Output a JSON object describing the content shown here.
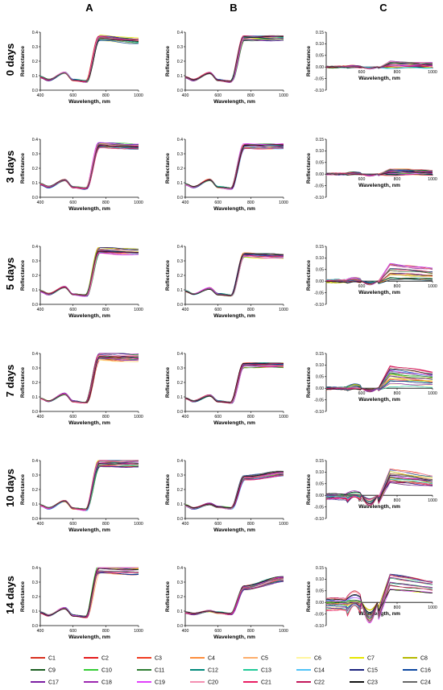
{
  "column_headers": [
    "A",
    "B",
    "C"
  ],
  "row_labels": [
    "0 days",
    "3 days",
    "5 days",
    "7 days",
    "10 days",
    "14 days"
  ],
  "axis_text": {
    "xlabel": "Wavelength, nm",
    "ylabel": "Reflectance"
  },
  "legend": {
    "names": [
      "C1",
      "C2",
      "C3",
      "C4",
      "C5",
      "C6",
      "C7",
      "C8",
      "C9",
      "C10",
      "C11",
      "C12",
      "C13",
      "C14",
      "C15",
      "C16",
      "C17",
      "C18",
      "C19",
      "C20",
      "C21",
      "C22",
      "C23",
      "C24"
    ],
    "colors": [
      "#d7301f",
      "#e41a1c",
      "#f03b20",
      "#fd8d3c",
      "#fdae6b",
      "#fff59d",
      "#e6e600",
      "#b5b800",
      "#1b5e20",
      "#33cc33",
      "#2e7d32",
      "#00897b",
      "#20c997",
      "#4fc3f7",
      "#1a237e",
      "#0d47a1",
      "#7b1fa2",
      "#9c27b0",
      "#e040fb",
      "#f48fb1",
      "#e91e63",
      "#c2185b",
      "#111111",
      "#666666"
    ]
  },
  "chart_data": [
    {
      "type": "line",
      "panel": "A",
      "row": "0 days",
      "x_range": [
        400,
        1000
      ],
      "y_range": [
        0,
        0.4
      ],
      "xticks": [
        400,
        600,
        800,
        1000
      ],
      "yticks": [
        0,
        0.1,
        0.2,
        0.3,
        0.4
      ],
      "xlabel": "Wavelength, nm",
      "ylabel": "Reflectance",
      "shape": "veg",
      "seed": 1,
      "key_points": {
        "x": [
          400,
          450,
          550,
          600,
          680,
          760,
          1000
        ],
        "y": [
          0.09,
          0.07,
          0.12,
          0.07,
          0.06,
          0.36,
          0.34
        ]
      },
      "series_spread": 0.05
    },
    {
      "type": "line",
      "panel": "B",
      "row": "0 days",
      "x_range": [
        400,
        1000
      ],
      "y_range": [
        0,
        0.4
      ],
      "xticks": [
        400,
        600,
        800,
        1000
      ],
      "yticks": [
        0,
        0.1,
        0.2,
        0.3,
        0.4
      ],
      "xlabel": "Wavelength, nm",
      "ylabel": "Reflectance",
      "shape": "veg",
      "seed": 2,
      "key_points": {
        "x": [
          400,
          450,
          550,
          600,
          680,
          760,
          1000
        ],
        "y": [
          0.09,
          0.07,
          0.12,
          0.07,
          0.06,
          0.36,
          0.36
        ]
      },
      "series_spread": 0.05
    },
    {
      "type": "line",
      "panel": "C",
      "row": "0 days",
      "x_range": [
        400,
        1000
      ],
      "y_range": [
        -0.1,
        0.15
      ],
      "xticks": [
        600,
        800,
        1000
      ],
      "yticks": [
        -0.1,
        -0.05,
        0,
        0.05,
        0.1,
        0.15
      ],
      "xlabel": "Wavelength, nm",
      "ylabel": "Reflectance",
      "shape": "diff",
      "seed": 3,
      "nir_range": [
        -0.005,
        0.025
      ],
      "vis_range": [
        -0.005,
        0.005
      ]
    },
    {
      "type": "line",
      "panel": "A",
      "row": "3 days",
      "x_range": [
        400,
        1000
      ],
      "y_range": [
        0,
        0.4
      ],
      "xticks": [
        400,
        600,
        800,
        1000
      ],
      "yticks": [
        0,
        0.1,
        0.2,
        0.3,
        0.4
      ],
      "xlabel": "Wavelength, nm",
      "ylabel": "Reflectance",
      "shape": "veg",
      "seed": 4,
      "key_points": {
        "x": [
          400,
          450,
          550,
          600,
          680,
          760,
          1000
        ],
        "y": [
          0.09,
          0.07,
          0.12,
          0.07,
          0.06,
          0.36,
          0.35
        ]
      },
      "series_spread": 0.05
    },
    {
      "type": "line",
      "panel": "B",
      "row": "3 days",
      "x_range": [
        400,
        1000
      ],
      "y_range": [
        0,
        0.4
      ],
      "xticks": [
        400,
        600,
        800,
        1000
      ],
      "yticks": [
        0,
        0.1,
        0.2,
        0.3,
        0.4
      ],
      "xlabel": "Wavelength, nm",
      "ylabel": "Reflectance",
      "shape": "veg",
      "seed": 5,
      "key_points": {
        "x": [
          400,
          450,
          550,
          600,
          680,
          760,
          1000
        ],
        "y": [
          0.09,
          0.07,
          0.12,
          0.07,
          0.06,
          0.35,
          0.35
        ]
      },
      "series_spread": 0.05
    },
    {
      "type": "line",
      "panel": "C",
      "row": "3 days",
      "x_range": [
        400,
        1000
      ],
      "y_range": [
        -0.1,
        0.15
      ],
      "xticks": [
        600,
        800,
        1000
      ],
      "yticks": [
        -0.1,
        -0.05,
        0,
        0.05,
        0.1,
        0.15
      ],
      "xlabel": "Wavelength, nm",
      "ylabel": "Reflectance",
      "shape": "diff",
      "seed": 6,
      "nir_range": [
        -0.005,
        0.025
      ],
      "vis_range": [
        -0.005,
        0.005
      ]
    },
    {
      "type": "line",
      "panel": "A",
      "row": "5 days",
      "x_range": [
        400,
        1000
      ],
      "y_range": [
        0,
        0.4
      ],
      "xticks": [
        400,
        600,
        800,
        1000
      ],
      "yticks": [
        0,
        0.1,
        0.2,
        0.3,
        0.4
      ],
      "xlabel": "Wavelength, nm",
      "ylabel": "Reflectance",
      "shape": "veg",
      "seed": 7,
      "key_points": {
        "x": [
          400,
          450,
          550,
          600,
          680,
          760,
          1000
        ],
        "y": [
          0.09,
          0.07,
          0.12,
          0.07,
          0.06,
          0.37,
          0.36
        ]
      },
      "series_spread": 0.06
    },
    {
      "type": "line",
      "panel": "B",
      "row": "5 days",
      "x_range": [
        400,
        1000
      ],
      "y_range": [
        0,
        0.4
      ],
      "xticks": [
        400,
        600,
        800,
        1000
      ],
      "yticks": [
        0,
        0.1,
        0.2,
        0.3,
        0.4
      ],
      "xlabel": "Wavelength, nm",
      "ylabel": "Reflectance",
      "shape": "veg",
      "seed": 8,
      "key_points": {
        "x": [
          400,
          450,
          550,
          600,
          680,
          760,
          1000
        ],
        "y": [
          0.09,
          0.07,
          0.11,
          0.07,
          0.06,
          0.34,
          0.33
        ]
      },
      "series_spread": 0.05
    },
    {
      "type": "line",
      "panel": "C",
      "row": "5 days",
      "x_range": [
        400,
        1000
      ],
      "y_range": [
        -0.1,
        0.15
      ],
      "xticks": [
        600,
        800,
        1000
      ],
      "yticks": [
        -0.1,
        -0.05,
        0,
        0.05,
        0.1,
        0.15
      ],
      "xlabel": "Wavelength, nm",
      "ylabel": "Reflectance",
      "shape": "diff",
      "seed": 9,
      "nir_range": [
        -0.005,
        0.075
      ],
      "vis_range": [
        -0.01,
        0.01
      ]
    },
    {
      "type": "line",
      "panel": "A",
      "row": "7 days",
      "x_range": [
        400,
        1000
      ],
      "y_range": [
        0,
        0.4
      ],
      "xticks": [
        400,
        600,
        800,
        1000
      ],
      "yticks": [
        0,
        0.1,
        0.2,
        0.3,
        0.4
      ],
      "xlabel": "Wavelength, nm",
      "ylabel": "Reflectance",
      "shape": "veg",
      "seed": 10,
      "key_points": {
        "x": [
          400,
          450,
          550,
          600,
          680,
          760,
          1000
        ],
        "y": [
          0.09,
          0.07,
          0.12,
          0.07,
          0.06,
          0.38,
          0.37
        ]
      },
      "series_spread": 0.07
    },
    {
      "type": "line",
      "panel": "B",
      "row": "7 days",
      "x_range": [
        400,
        1000
      ],
      "y_range": [
        0,
        0.4
      ],
      "xticks": [
        400,
        600,
        800,
        1000
      ],
      "yticks": [
        0,
        0.1,
        0.2,
        0.3,
        0.4
      ],
      "xlabel": "Wavelength, nm",
      "ylabel": "Reflectance",
      "shape": "veg",
      "seed": 11,
      "key_points": {
        "x": [
          400,
          450,
          550,
          600,
          680,
          760,
          1000
        ],
        "y": [
          0.09,
          0.07,
          0.11,
          0.07,
          0.06,
          0.32,
          0.32
        ]
      },
      "series_spread": 0.05
    },
    {
      "type": "line",
      "panel": "C",
      "row": "7 days",
      "x_range": [
        400,
        1000
      ],
      "y_range": [
        -0.1,
        0.15
      ],
      "xticks": [
        600,
        800,
        1000
      ],
      "yticks": [
        -0.1,
        -0.05,
        0,
        0.05,
        0.1,
        0.15
      ],
      "xlabel": "Wavelength, nm",
      "ylabel": "Reflectance",
      "shape": "diff",
      "seed": 12,
      "nir_range": [
        0.0,
        0.1
      ],
      "vis_range": [
        -0.01,
        0.01
      ]
    },
    {
      "type": "line",
      "panel": "A",
      "row": "10 days",
      "x_range": [
        400,
        1000
      ],
      "y_range": [
        0,
        0.4
      ],
      "xticks": [
        400,
        600,
        800,
        1000
      ],
      "yticks": [
        0,
        0.1,
        0.2,
        0.3,
        0.4
      ],
      "xlabel": "Wavelength, nm",
      "ylabel": "Reflectance",
      "shape": "veg",
      "seed": 13,
      "key_points": {
        "x": [
          400,
          450,
          550,
          600,
          680,
          760,
          1000
        ],
        "y": [
          0.09,
          0.07,
          0.12,
          0.07,
          0.06,
          0.38,
          0.38
        ]
      },
      "series_spread": 0.06
    },
    {
      "type": "line",
      "panel": "B",
      "row": "10 days",
      "x_range": [
        400,
        1000
      ],
      "y_range": [
        0,
        0.4
      ],
      "xticks": [
        400,
        600,
        800,
        1000
      ],
      "yticks": [
        0,
        0.1,
        0.2,
        0.3,
        0.4
      ],
      "xlabel": "Wavelength, nm",
      "ylabel": "Reflectance",
      "shape": "veg",
      "seed": 14,
      "key_points": {
        "x": [
          400,
          450,
          550,
          600,
          680,
          760,
          1000
        ],
        "y": [
          0.09,
          0.07,
          0.1,
          0.08,
          0.07,
          0.28,
          0.31
        ]
      },
      "series_spread": 0.05
    },
    {
      "type": "line",
      "panel": "C",
      "row": "10 days",
      "x_range": [
        400,
        1000
      ],
      "y_range": [
        -0.1,
        0.15
      ],
      "xticks": [
        600,
        800,
        1000
      ],
      "yticks": [
        -0.1,
        -0.05,
        0,
        0.05,
        0.1,
        0.15
      ],
      "xlabel": "Wavelength, nm",
      "ylabel": "Reflectance",
      "shape": "diff",
      "seed": 15,
      "nir_range": [
        0.05,
        0.12
      ],
      "vis_range": [
        -0.03,
        0.01
      ]
    },
    {
      "type": "line",
      "panel": "A",
      "row": "14 days",
      "x_range": [
        400,
        1000
      ],
      "y_range": [
        0,
        0.4
      ],
      "xticks": [
        400,
        600,
        800,
        1000
      ],
      "yticks": [
        0,
        0.1,
        0.2,
        0.3,
        0.4
      ],
      "xlabel": "Wavelength, nm",
      "ylabel": "Reflectance",
      "shape": "veg",
      "seed": 16,
      "key_points": {
        "x": [
          400,
          450,
          550,
          600,
          680,
          760,
          1000
        ],
        "y": [
          0.09,
          0.07,
          0.12,
          0.07,
          0.06,
          0.39,
          0.38
        ]
      },
      "series_spread": 0.08
    },
    {
      "type": "line",
      "panel": "B",
      "row": "14 days",
      "x_range": [
        400,
        1000
      ],
      "y_range": [
        0,
        0.4
      ],
      "xticks": [
        400,
        600,
        800,
        1000
      ],
      "yticks": [
        0,
        0.1,
        0.2,
        0.3,
        0.4
      ],
      "xlabel": "Wavelength, nm",
      "ylabel": "Reflectance",
      "shape": "veg",
      "seed": 17,
      "key_points": {
        "x": [
          400,
          450,
          550,
          600,
          680,
          760,
          1000
        ],
        "y": [
          0.09,
          0.08,
          0.1,
          0.09,
          0.08,
          0.26,
          0.32
        ]
      },
      "series_spread": 0.06
    },
    {
      "type": "line",
      "panel": "C",
      "row": "14 days",
      "x_range": [
        400,
        1000
      ],
      "y_range": [
        -0.1,
        0.15
      ],
      "xticks": [
        600,
        800,
        1000
      ],
      "yticks": [
        -0.1,
        -0.05,
        0,
        0.05,
        0.1,
        0.15
      ],
      "xlabel": "Wavelength, nm",
      "ylabel": "Reflectance",
      "shape": "diff",
      "seed": 18,
      "nir_range": [
        0.03,
        0.13
      ],
      "vis_range": [
        -0.06,
        0.03
      ]
    }
  ]
}
